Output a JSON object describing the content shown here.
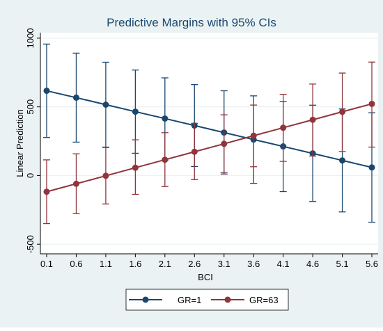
{
  "chart_data": {
    "type": "line",
    "title": "Predictive Margins with 95% CIs",
    "xlabel": "BCI",
    "ylabel": "Linear Prediction",
    "x": [
      0.1,
      0.6,
      1.1,
      1.6,
      2.1,
      2.6,
      3.1,
      3.6,
      4.1,
      4.6,
      5.1,
      5.6
    ],
    "x_tick_labels": [
      "0.1",
      "0.6",
      "1.1",
      "1.6",
      "2.1",
      "2.6",
      "3.1",
      "3.6",
      "4.1",
      "4.6",
      "5.1",
      "5.6"
    ],
    "y_ticks": [
      -500,
      0,
      500,
      1000
    ],
    "y_tick_labels": [
      "-500",
      "0",
      "500",
      "1000"
    ],
    "ylim": [
      -570,
      1040
    ],
    "grid": "horizontal",
    "legend_position": "bottom",
    "series": [
      {
        "name": "GR=1",
        "color": "#1a476f",
        "values": [
          617,
          567,
          516,
          465,
          415,
          364,
          313,
          262,
          212,
          161,
          110,
          59
        ],
        "lower": [
          277,
          243,
          207,
          162,
          112,
          66,
          11,
          -57,
          -117,
          -189,
          -265,
          -340
        ],
        "upper": [
          957,
          891,
          825,
          768,
          711,
          662,
          617,
          580,
          540,
          512,
          485,
          457
        ]
      },
      {
        "name": "GR=63",
        "color": "#90353b",
        "values": [
          -118,
          -60,
          -2,
          57,
          115,
          173,
          231,
          290,
          348,
          406,
          464,
          522
        ],
        "lower": [
          -350,
          -278,
          -207,
          -137,
          -80,
          -30,
          22,
          64,
          103,
          142,
          175,
          207
        ],
        "upper": [
          114,
          158,
          204,
          260,
          312,
          380,
          442,
          513,
          591,
          666,
          746,
          826
        ]
      }
    ]
  },
  "colors": {
    "outer_background": "#eaf2f3",
    "plot_background": "#ffffff",
    "title_color": "#1a476f",
    "text_color": "#000000",
    "grid_color": "#eaf2f3"
  }
}
